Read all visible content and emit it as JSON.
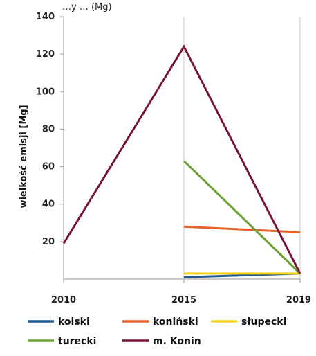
{
  "header_fragment": "…y … (Mg)",
  "chart_data": {
    "type": "line",
    "x": [
      "2010",
      "2015",
      "2019"
    ],
    "ylabel": "wielkość emisji [Mg]",
    "ylim": [
      0,
      140
    ],
    "yticks": [
      20,
      40,
      60,
      80,
      100,
      120,
      140
    ],
    "grid": "vertical",
    "legend_position": "bottom",
    "series": [
      {
        "name": "kolski",
        "color": "#1f5a96",
        "values": [
          null,
          1,
          3
        ]
      },
      {
        "name": "koniński",
        "color": "#e8622a",
        "values": [
          null,
          28,
          25
        ]
      },
      {
        "name": "słupecki",
        "color": "#f2d21a",
        "values": [
          null,
          3,
          3
        ]
      },
      {
        "name": "turecki",
        "color": "#6aa132",
        "values": [
          null,
          63,
          3
        ]
      },
      {
        "name": "m. Konin",
        "color": "#7a1434",
        "values": [
          19,
          124,
          3
        ]
      }
    ]
  }
}
